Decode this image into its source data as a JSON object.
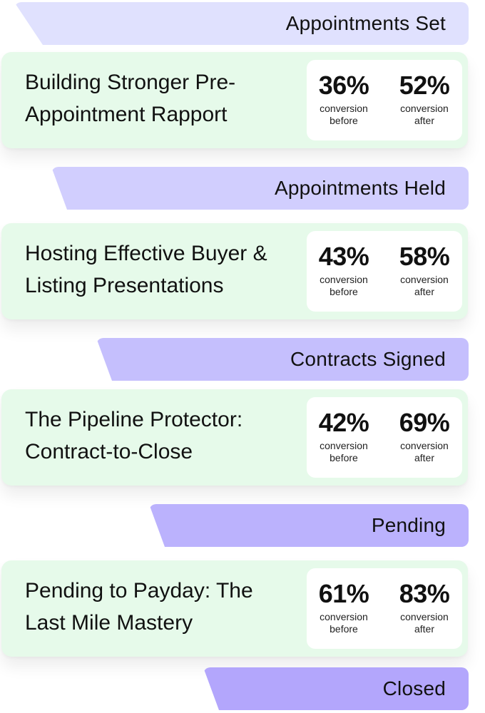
{
  "stages": [
    {
      "label": "Appointments Set",
      "color": "#e0e1fe"
    },
    {
      "label": "Appointments Held",
      "color": "#d1cefe"
    },
    {
      "label": "Contracts Signed",
      "color": "#c5bffd"
    },
    {
      "label": "Pending",
      "color": "#bbb2fd"
    },
    {
      "label": "Closed",
      "color": "#b3a6fc"
    }
  ],
  "cards": [
    {
      "title": "Building Stronger Pre-Appointment Rapport",
      "before_value": "36%",
      "before_caption": "conversion before",
      "after_value": "52%",
      "after_caption": "conversion after"
    },
    {
      "title": "Hosting Effective Buyer & Listing Presentations",
      "before_value": "43%",
      "before_caption": "conversion before",
      "after_value": "58%",
      "after_caption": "conversion after"
    },
    {
      "title": "The Pipeline Protector: Contract-to-Close",
      "before_value": "42%",
      "before_caption": "conversion before",
      "after_value": "69%",
      "after_caption": "conversion after"
    },
    {
      "title": "Pending to Payday: The Last Mile Mastery",
      "before_value": "61%",
      "before_caption": "conversion before",
      "after_value": "83%",
      "after_caption": "conversion after"
    }
  ],
  "colors": {
    "card_background": "#e6faea",
    "stats_background": "#ffffff"
  }
}
